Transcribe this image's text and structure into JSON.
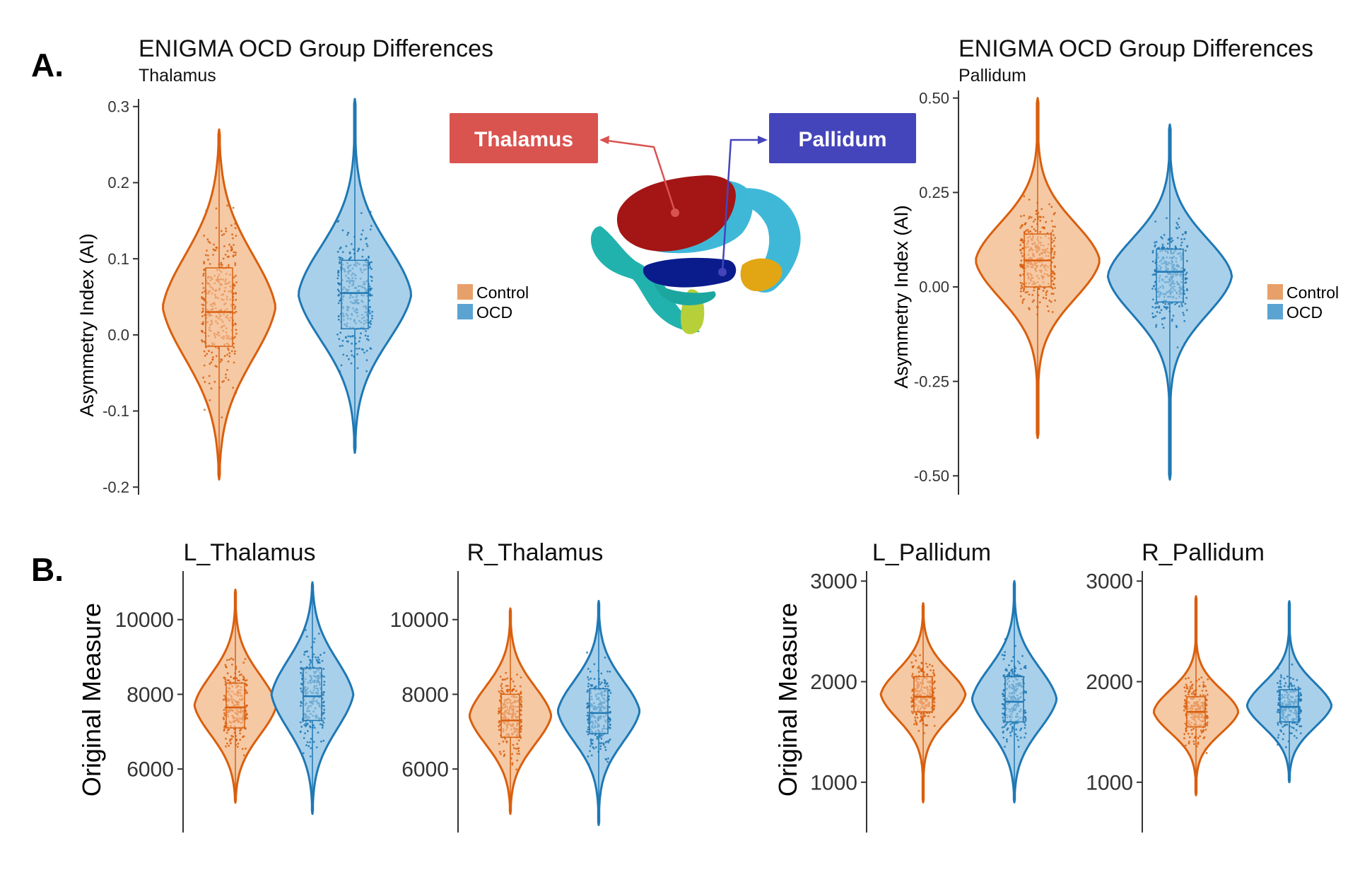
{
  "figure": {
    "panel_a_label": "A.",
    "panel_b_label": "B.",
    "callouts": {
      "thalamus": "Thalamus",
      "pallidum": "Pallidum"
    },
    "colors": {
      "control": "#D95F0E",
      "control_fill": "#F5C9A4",
      "ocd": "#1F78B4",
      "ocd_fill": "#A9D0EA",
      "control_legend": "#E8A06A",
      "ocd_legend": "#5BA4D2",
      "thalamus_box": "#D9534F",
      "pallidum_box": "#4545BB"
    },
    "brain_image": "brain-render-icon"
  },
  "chart_data": [
    {
      "id": "a1",
      "type": "violin",
      "title": "ENIGMA OCD Group Differences",
      "subtitle": "Thalamus",
      "ylabel": "Asymmetry Index (AI)",
      "ylim": [
        -0.21,
        0.31
      ],
      "yticks": [
        -0.2,
        -0.1,
        0.0,
        0.1,
        0.2,
        0.3
      ],
      "ytick_labels": [
        "-0.2",
        "-0.1",
        "0.0",
        "0.1",
        "0.2",
        "0.3"
      ],
      "legend": [
        "Control",
        "OCD"
      ],
      "legend_position": "right",
      "series": [
        {
          "name": "Control",
          "min": -0.19,
          "q1": -0.015,
          "median": 0.03,
          "q3": 0.088,
          "max": 0.27
        },
        {
          "name": "OCD",
          "min": -0.155,
          "q1": 0.008,
          "median": 0.055,
          "q3": 0.098,
          "max": 0.31
        }
      ]
    },
    {
      "id": "a2",
      "type": "violin",
      "title": "ENIGMA OCD Group Differences",
      "subtitle": "Pallidum",
      "ylabel": "Asymmetry Index (AI)",
      "ylim": [
        -0.55,
        0.52
      ],
      "yticks": [
        -0.5,
        -0.25,
        0.0,
        0.25,
        0.5
      ],
      "ytick_labels": [
        "-0.50",
        "-0.25",
        "0.00",
        "0.25",
        "0.50"
      ],
      "legend": [
        "Control",
        "OCD"
      ],
      "legend_position": "right",
      "series": [
        {
          "name": "Control",
          "min": -0.4,
          "q1": 0.0,
          "median": 0.07,
          "q3": 0.14,
          "max": 0.5
        },
        {
          "name": "OCD",
          "min": -0.51,
          "q1": -0.04,
          "median": 0.04,
          "q3": 0.1,
          "max": 0.43
        }
      ]
    },
    {
      "id": "b1",
      "type": "violin",
      "title": "L_Thalamus",
      "ylabel": "Original Measure",
      "ylim": [
        4300,
        11300
      ],
      "yticks": [
        6000,
        8000,
        10000
      ],
      "ytick_labels": [
        "6000",
        "8000",
        "10000"
      ],
      "series": [
        {
          "name": "Control",
          "min": 5100,
          "q1": 7100,
          "median": 7650,
          "q3": 8300,
          "max": 10800
        },
        {
          "name": "OCD",
          "min": 4800,
          "q1": 7300,
          "median": 7950,
          "q3": 8700,
          "max": 11000
        }
      ]
    },
    {
      "id": "b2",
      "type": "violin",
      "title": "R_Thalamus",
      "ylim": [
        4300,
        11300
      ],
      "yticks": [
        6000,
        8000,
        10000
      ],
      "ytick_labels": [
        "6000",
        "8000",
        "10000"
      ],
      "series": [
        {
          "name": "Control",
          "min": 4800,
          "q1": 6850,
          "median": 7300,
          "q3": 8000,
          "max": 10300
        },
        {
          "name": "OCD",
          "min": 4500,
          "q1": 6950,
          "median": 7500,
          "q3": 8150,
          "max": 10500
        }
      ]
    },
    {
      "id": "b3",
      "type": "violin",
      "title": "L_Pallidum",
      "ylabel": "Original Measure",
      "ylim": [
        500,
        3100
      ],
      "yticks": [
        1000,
        2000,
        3000
      ],
      "ytick_labels": [
        "1000",
        "2000",
        "3000"
      ],
      "series": [
        {
          "name": "Control",
          "min": 800,
          "q1": 1700,
          "median": 1850,
          "q3": 2050,
          "max": 2780
        },
        {
          "name": "OCD",
          "min": 800,
          "q1": 1600,
          "median": 1800,
          "q3": 2050,
          "max": 3000
        }
      ]
    },
    {
      "id": "b4",
      "type": "violin",
      "title": "R_Pallidum",
      "ylim": [
        500,
        3100
      ],
      "yticks": [
        1000,
        2000,
        3000
      ],
      "ytick_labels": [
        "1000",
        "2000",
        "3000"
      ],
      "series": [
        {
          "name": "Control",
          "min": 870,
          "q1": 1550,
          "median": 1700,
          "q3": 1850,
          "max": 2850
        },
        {
          "name": "OCD",
          "min": 1000,
          "q1": 1600,
          "median": 1750,
          "q3": 1920,
          "max": 2800
        }
      ]
    }
  ]
}
